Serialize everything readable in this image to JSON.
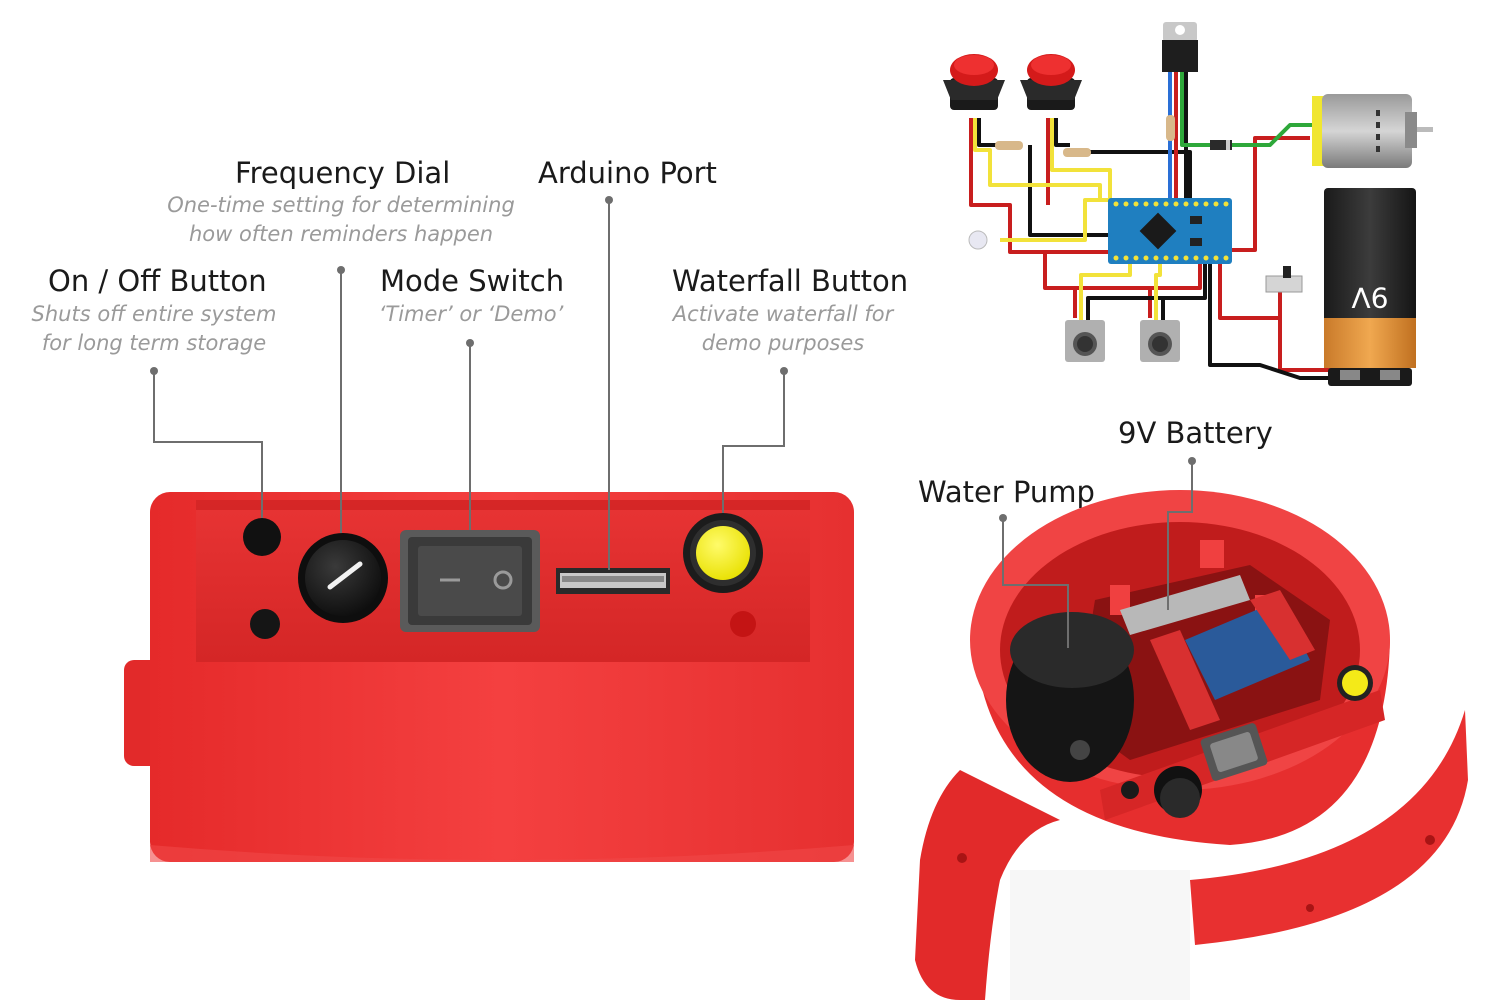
{
  "callouts": {
    "onoff": {
      "title": "On / Off Button",
      "line1": "Shuts off entire system",
      "line2": "for long term storage"
    },
    "freq": {
      "title": "Frequency Dial",
      "line1": "One-time setting for determining",
      "line2": "how often reminders happen"
    },
    "mode": {
      "title": "Mode Switch",
      "line1": "‘Timer’ or ‘Demo’"
    },
    "port": {
      "title": "Arduino Port"
    },
    "waterfall": {
      "title": "Waterfall Button",
      "line1": "Activate waterfall for",
      "line2": "demo purposes"
    },
    "battery": {
      "title": "9V Battery"
    },
    "pump": {
      "title": "Water Pump"
    }
  },
  "schematic": {
    "battery_text": "9V"
  },
  "colors": {
    "housing": "#f03a3a",
    "housing_dark": "#c92020",
    "wire_red": "#c81e1e",
    "wire_yellow": "#f2e23a",
    "wire_green": "#2ea83a",
    "board_blue": "#1f7fc0"
  }
}
